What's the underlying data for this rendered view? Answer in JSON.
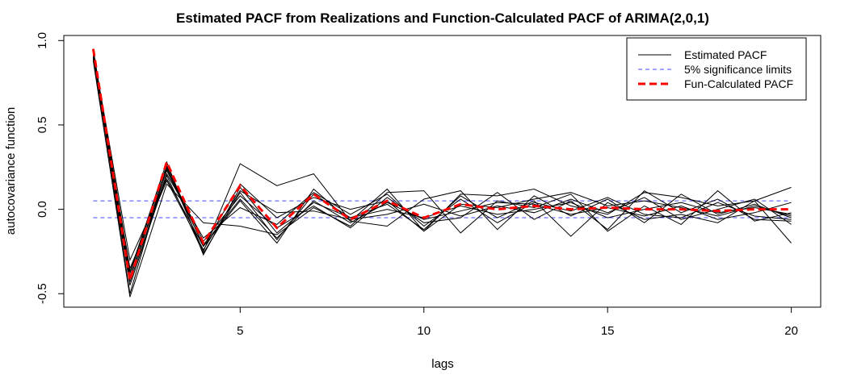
{
  "chart_data": {
    "type": "line",
    "title": "Estimated PACF from Realizations and Function-Calculated PACF of ARIMA(2,0,1)",
    "xlabel": "lags",
    "ylabel": "autocovariance function",
    "xlim": [
      0.2,
      20.8
    ],
    "ylim": [
      -0.58,
      1.03
    ],
    "xticks": [
      5,
      10,
      15,
      20
    ],
    "yticks": [
      -0.5,
      0.0,
      0.5,
      1.0
    ],
    "xtick_labels": [
      "5",
      "10",
      "15",
      "20"
    ],
    "ytick_labels": [
      "-0.5",
      "0.0",
      "0.5",
      "1.0"
    ],
    "grid": false,
    "legend": {
      "position": "top-right",
      "entries": [
        {
          "label": "Estimated PACF",
          "style": "solid",
          "color": "#000000"
        },
        {
          "label": "5% significance limits",
          "style": "dashed",
          "color": "#4a4aff"
        },
        {
          "label": "Fun-Calculated PACF",
          "style": "dashed-thick",
          "color": "#ff0000"
        }
      ]
    },
    "x": [
      1,
      2,
      3,
      4,
      5,
      6,
      7,
      8,
      9,
      10,
      11,
      12,
      13,
      14,
      15,
      16,
      17,
      18,
      19,
      20
    ],
    "significance_limits": [
      0.05,
      -0.05
    ],
    "estimated_series": [
      [
        0.92,
        -0.5,
        0.25,
        -0.25,
        0.27,
        0.14,
        0.21,
        -0.07,
        0.12,
        -0.13,
        0.09,
        0.08,
        0.12,
        0.02,
        -0.03,
        0.1,
        0.07,
        0.02,
        0.05,
        -0.2
      ],
      [
        0.9,
        -0.45,
        0.2,
        -0.26,
        0.1,
        -0.18,
        0.09,
        -0.05,
        0.03,
        -0.12,
        0.08,
        -0.05,
        0.05,
        -0.16,
        0.04,
        -0.06,
        -0.03,
        -0.08,
        0.05,
        0.13
      ],
      [
        0.88,
        -0.52,
        0.15,
        -0.08,
        -0.1,
        -0.15,
        0.01,
        -0.1,
        0.1,
        0.11,
        -0.14,
        0.05,
        0.01,
        0.09,
        -0.13,
        0.02,
        -0.09,
        0.11,
        -0.07,
        -0.02
      ],
      [
        0.93,
        -0.3,
        0.18,
        -0.22,
        0.05,
        -0.2,
        0.12,
        -0.07,
        -0.1,
        0.06,
        0.11,
        -0.12,
        0.08,
        -0.04,
        0.06,
        -0.08,
        0.09,
        -0.03,
        0.03,
        -0.05
      ],
      [
        0.91,
        -0.38,
        0.26,
        -0.22,
        0.15,
        -0.05,
        0.07,
        0.0,
        0.05,
        -0.13,
        0.03,
        0.01,
        0.06,
        0.1,
        0.02,
        0.05,
        0.01,
        -0.04,
        0.02,
        -0.04
      ],
      [
        0.89,
        -0.4,
        0.24,
        -0.19,
        0.08,
        -0.11,
        0.02,
        -0.11,
        0.07,
        -0.08,
        -0.05,
        0.1,
        -0.06,
        0.05,
        -0.12,
        0.11,
        -0.02,
        0.06,
        -0.06,
        -0.07
      ],
      [
        0.94,
        -0.37,
        0.28,
        -0.27,
        0.13,
        -0.14,
        0.04,
        -0.05,
        0.0,
        -0.05,
        0.02,
        -0.03,
        0.0,
        0.04,
        -0.05,
        0.0,
        0.04,
        -0.02,
        0.01,
        -0.03
      ],
      [
        0.9,
        -0.43,
        0.21,
        -0.17,
        0.01,
        -0.09,
        0.1,
        -0.03,
        0.09,
        -0.1,
        0.06,
        -0.08,
        0.04,
        -0.01,
        0.07,
        -0.03,
        -0.05,
        0.04,
        -0.04,
        -0.06
      ],
      [
        0.92,
        -0.35,
        0.17,
        -0.24,
        0.11,
        -0.02,
        -0.01,
        -0.06,
        -0.03,
        0.03,
        -0.04,
        0.02,
        -0.02,
        0.06,
        -0.02,
        0.07,
        -0.06,
        0.0,
        0.06,
        -0.09
      ],
      [
        0.95,
        -0.41,
        0.23,
        -0.21,
        0.06,
        -0.17,
        0.05,
        -0.08,
        0.04,
        -0.06,
        -0.01,
        0.04,
        0.03,
        -0.03,
        0.01,
        -0.04,
        0.02,
        -0.06,
        -0.02,
        0.04
      ]
    ],
    "calculated_series": [
      0.95,
      -0.42,
      0.28,
      -0.2,
      0.14,
      -0.11,
      0.09,
      -0.06,
      0.05,
      -0.05,
      0.03,
      0.0,
      0.02,
      0.0,
      0.01,
      0.0,
      0.0,
      -0.01,
      0.0,
      0.0
    ]
  }
}
